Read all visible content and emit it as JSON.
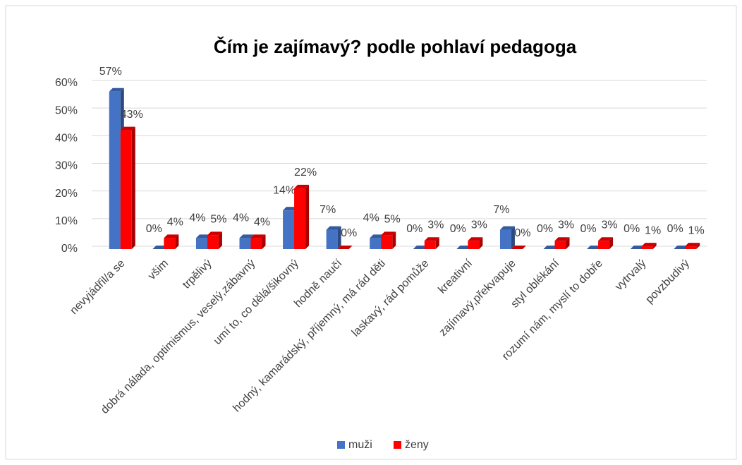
{
  "chart_data": {
    "type": "bar",
    "title": "Čím je zajímavý? podle pohlaví pedagoga",
    "categories": [
      "nevyjádřil/a se",
      "všim",
      "trpělivý",
      "dobrá nálada, optimismus, veselý,zábavný",
      "umí to, co dělá/šikovný",
      "hodně naučí",
      "hodný, kamarádský, příjemný, má rád děti",
      "laskavý, rád pomůže",
      "kreativní",
      "zajímavý,překvapuje",
      "styl oblékání",
      "rozumí nám, myslí to dobře",
      "vytrvalý",
      "povzbudivý"
    ],
    "series": [
      {
        "name": "muži",
        "color": "#4472c4",
        "values": [
          57,
          0,
          4,
          4,
          14,
          7,
          4,
          0,
          0,
          7,
          0,
          0,
          0,
          0
        ],
        "value_labels": [
          "57%",
          "0%",
          "4%",
          "4%",
          "14%",
          "7%",
          "4%",
          "0%",
          "0%",
          "7%",
          "0%",
          "0%",
          "0%",
          "0%"
        ]
      },
      {
        "name": "ženy",
        "color": "#ff0000",
        "values": [
          43,
          4,
          5,
          4,
          22,
          0,
          5,
          3,
          3,
          0,
          3,
          3,
          1,
          1
        ],
        "value_labels": [
          "43%",
          "4%",
          "5%",
          "4%",
          "22%",
          "0%",
          "5%",
          "3%",
          "3%",
          "0%",
          "3%",
          "3%",
          "1%",
          "1%"
        ]
      }
    ],
    "ylim": [
      0,
      60
    ],
    "yticks": [
      {
        "value": 0,
        "label": "0%"
      },
      {
        "value": 10,
        "label": "10%"
      },
      {
        "value": 20,
        "label": "20%"
      },
      {
        "value": 30,
        "label": "30%"
      },
      {
        "value": 40,
        "label": "40%"
      },
      {
        "value": 50,
        "label": "50%"
      },
      {
        "value": 60,
        "label": "60%"
      }
    ],
    "grid": true,
    "legend": "bottom"
  }
}
